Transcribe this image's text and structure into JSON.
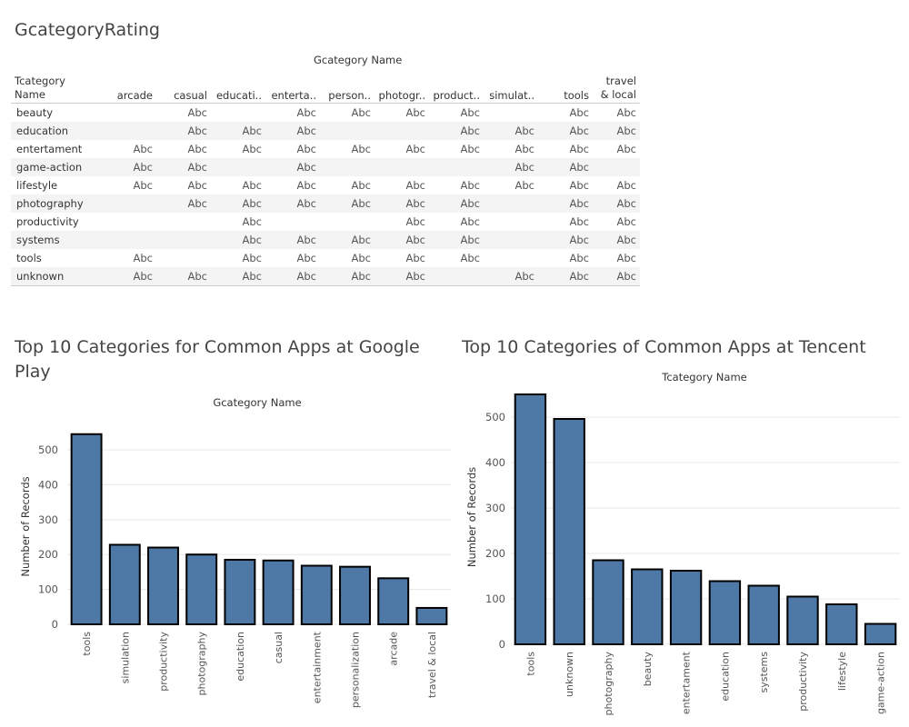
{
  "crosstab": {
    "title": "GcategoryRating",
    "column_header_title": "Gcategory Name",
    "row_header_title": "Tcategory Name",
    "columns": [
      "arcade",
      "casual",
      "educati..",
      "enterta..",
      "person..",
      "photogr..",
      "product..",
      "simulat..",
      "tools",
      "travel & local"
    ],
    "rows": [
      {
        "label": "beauty",
        "cells": [
          "",
          "Abc",
          "",
          "Abc",
          "Abc",
          "Abc",
          "Abc",
          "",
          "Abc",
          "Abc"
        ]
      },
      {
        "label": "education",
        "cells": [
          "",
          "Abc",
          "Abc",
          "Abc",
          "",
          "",
          "Abc",
          "Abc",
          "Abc",
          "Abc"
        ]
      },
      {
        "label": "entertament",
        "cells": [
          "Abc",
          "Abc",
          "Abc",
          "Abc",
          "Abc",
          "Abc",
          "Abc",
          "Abc",
          "Abc",
          "Abc"
        ]
      },
      {
        "label": "game-action",
        "cells": [
          "Abc",
          "Abc",
          "",
          "Abc",
          "",
          "",
          "",
          "Abc",
          "Abc",
          ""
        ]
      },
      {
        "label": "lifestyle",
        "cells": [
          "Abc",
          "Abc",
          "Abc",
          "Abc",
          "Abc",
          "Abc",
          "Abc",
          "Abc",
          "Abc",
          "Abc"
        ]
      },
      {
        "label": "photography",
        "cells": [
          "",
          "Abc",
          "Abc",
          "Abc",
          "Abc",
          "Abc",
          "Abc",
          "",
          "Abc",
          "Abc"
        ]
      },
      {
        "label": "productivity",
        "cells": [
          "",
          "",
          "Abc",
          "",
          "",
          "Abc",
          "Abc",
          "",
          "Abc",
          "Abc"
        ]
      },
      {
        "label": "systems",
        "cells": [
          "",
          "",
          "Abc",
          "Abc",
          "Abc",
          "Abc",
          "Abc",
          "",
          "Abc",
          "Abc"
        ]
      },
      {
        "label": "tools",
        "cells": [
          "Abc",
          "",
          "Abc",
          "Abc",
          "Abc",
          "Abc",
          "Abc",
          "",
          "Abc",
          "Abc"
        ]
      },
      {
        "label": "unknown",
        "cells": [
          "Abc",
          "Abc",
          "Abc",
          "Abc",
          "Abc",
          "Abc",
          "",
          "Abc",
          "Abc",
          "Abc"
        ]
      }
    ]
  },
  "chart_data": [
    {
      "type": "bar",
      "title": "Top 10 Categories for Common Apps at Google Play",
      "xlabel": "Gcategory Name",
      "ylabel": "Number of Records",
      "categories": [
        "tools",
        "simulation",
        "productivity",
        "photography",
        "education",
        "casual",
        "entertainment",
        "personalization",
        "arcade",
        "travel & local"
      ],
      "values": [
        545,
        228,
        220,
        200,
        185,
        183,
        168,
        165,
        132,
        47
      ],
      "yticks": [
        0,
        100,
        200,
        300,
        400,
        500
      ],
      "ylim": [
        0,
        560
      ]
    },
    {
      "type": "bar",
      "title": "Top 10 Categories of Common Apps at Tencent",
      "xlabel": "Tcategory Name",
      "ylabel": "Number of Records",
      "categories": [
        "tools",
        "unknown",
        "photography",
        "beauty",
        "entertament",
        "education",
        "systems",
        "productivity",
        "lifestyle",
        "game-action"
      ],
      "values": [
        550,
        496,
        185,
        165,
        162,
        139,
        129,
        105,
        88,
        45
      ],
      "yticks": [
        0,
        100,
        200,
        300,
        400,
        500
      ],
      "ylim": [
        0,
        560
      ]
    }
  ]
}
